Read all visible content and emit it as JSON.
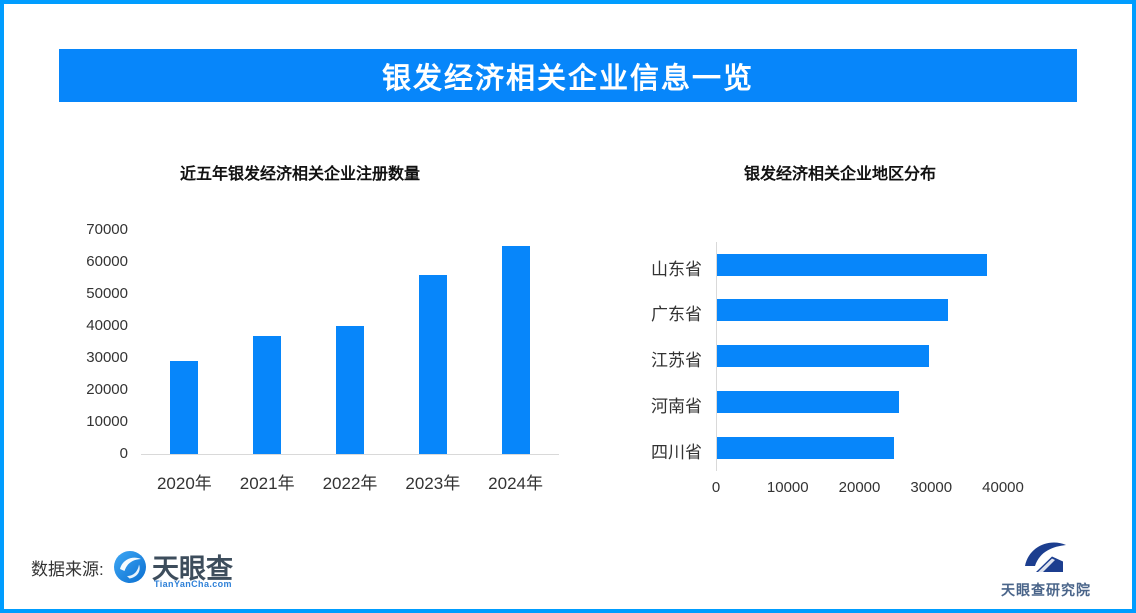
{
  "page": {
    "border_color": "#009dff",
    "background_color": "#ffffff",
    "accent_color": "#0786fa",
    "axis_color": "#d9d9d9"
  },
  "header": {
    "title": "银发经济相关企业信息一览"
  },
  "chart_data": [
    {
      "type": "bar",
      "orientation": "vertical",
      "title": "近五年银发经济相关企业注册数量",
      "categories": [
        "2020年",
        "2021年",
        "2022年",
        "2023年",
        "2024年"
      ],
      "values": [
        29000,
        36800,
        40000,
        56000,
        65000
      ],
      "xlabel": "",
      "ylabel": "",
      "ylim": [
        0,
        70000
      ],
      "yticks": [
        0,
        10000,
        20000,
        30000,
        40000,
        50000,
        60000,
        70000
      ],
      "grid": false,
      "legend": false,
      "bar_color": "#0786fa"
    },
    {
      "type": "bar",
      "orientation": "horizontal",
      "title": "银发经济相关企业地区分布",
      "categories": [
        "山东省",
        "广东省",
        "江苏省",
        "河南省",
        "四川省"
      ],
      "values": [
        37700,
        32200,
        29600,
        25400,
        24700
      ],
      "xlabel": "",
      "ylabel": "",
      "xlim": [
        0,
        45000
      ],
      "xticks": [
        0,
        10000,
        20000,
        30000,
        40000
      ],
      "grid": false,
      "legend": false,
      "bar_color": "#0786fa"
    }
  ],
  "footer": {
    "source_label": "数据来源:",
    "tianyancha_logo": {
      "text": "天眼查",
      "subtext": "TianYanCha.com"
    },
    "research_logo": {
      "text": "天眼查研究院"
    }
  }
}
